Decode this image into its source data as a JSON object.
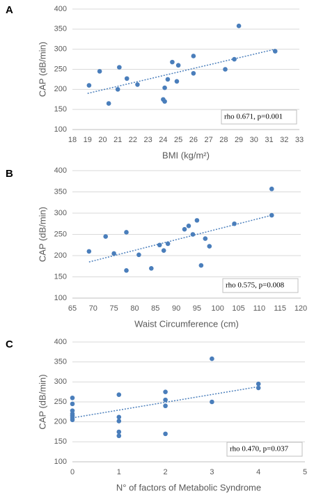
{
  "chart_data": [
    {
      "type": "scatter",
      "panel": "A",
      "xlabel": "BMI (kg/m²)",
      "ylabel": "CAP (dB/min)",
      "color": "#4a7ebb",
      "grid": true,
      "x": [
        19.1,
        19.8,
        20.4,
        21.0,
        21.1,
        21.6,
        22.3,
        24.0,
        24.1,
        24.1,
        24.3,
        24.6,
        24.9,
        25.0,
        26.0,
        26.0,
        28.1,
        28.7,
        29.0,
        31.4
      ],
      "values": [
        210,
        245,
        165,
        200,
        255,
        227,
        212,
        175,
        170,
        204,
        225,
        268,
        220,
        260,
        240,
        283,
        250,
        275,
        358,
        295
      ],
      "trend": {
        "x": [
          19,
          31.4
        ],
        "y": [
          190,
          300
        ]
      },
      "annotation": "rho 0.671,  p=0.001",
      "xlim": [
        18,
        33
      ],
      "xticks": [
        18,
        19,
        20,
        21,
        22,
        23,
        24,
        25,
        26,
        27,
        28,
        29,
        30,
        31,
        32,
        33
      ],
      "ylim": [
        100,
        400
      ],
      "yticks": [
        100,
        150,
        200,
        250,
        300,
        350,
        400
      ]
    },
    {
      "type": "scatter",
      "panel": "B",
      "xlabel": "Waist Circumference (cm)",
      "ylabel": "CAP (dB/min)",
      "color": "#4a7ebb",
      "grid": true,
      "x": [
        69,
        73,
        75,
        78,
        78,
        81,
        84,
        86,
        87,
        88,
        92,
        93,
        94,
        95,
        96,
        97,
        98,
        104,
        113,
        113
      ],
      "values": [
        210,
        245,
        205,
        255,
        165,
        202,
        170,
        225,
        212,
        228,
        262,
        270,
        250,
        283,
        177,
        240,
        222,
        275,
        357,
        295
      ],
      "trend": {
        "x": [
          69,
          113
        ],
        "y": [
          185,
          295
        ]
      },
      "annotation": "rho 0.575,  p=0.008",
      "xlim": [
        65,
        120
      ],
      "xticks": [
        65,
        70,
        75,
        80,
        85,
        90,
        95,
        100,
        105,
        110,
        115,
        120
      ],
      "ylim": [
        100,
        400
      ],
      "yticks": [
        100,
        150,
        200,
        250,
        300,
        350,
        400
      ]
    },
    {
      "type": "scatter",
      "panel": "C",
      "xlabel": "N° of factors of Metabolic Syndrome",
      "ylabel": "CAP (dB/min)",
      "color": "#4a7ebb",
      "grid": true,
      "x": [
        0,
        0,
        0,
        0,
        0,
        0,
        0,
        1,
        1,
        1,
        1,
        1,
        2,
        2,
        2,
        2,
        3,
        3,
        4,
        4
      ],
      "values": [
        260,
        245,
        228,
        220,
        215,
        210,
        205,
        268,
        212,
        202,
        175,
        165,
        275,
        255,
        240,
        170,
        358,
        250,
        295,
        285
      ],
      "trend": {
        "x": [
          0,
          4
        ],
        "y": [
          210,
          288
        ]
      },
      "annotation": "rho 0.470,  p=0.037",
      "xlim": [
        0,
        5
      ],
      "xticks": [
        0,
        1,
        2,
        3,
        4,
        5
      ],
      "ylim": [
        100,
        400
      ],
      "yticks": [
        100,
        150,
        200,
        250,
        300,
        350,
        400
      ]
    }
  ]
}
